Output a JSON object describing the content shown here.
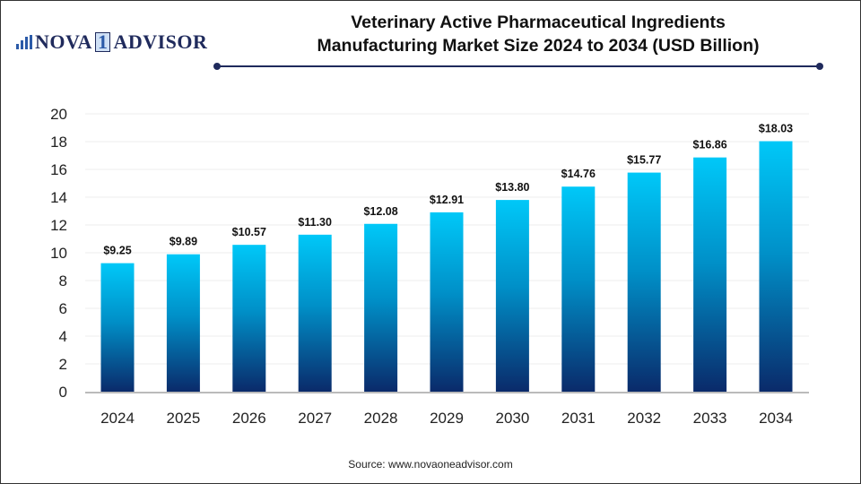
{
  "logo": {
    "text_left": "NOVA",
    "text_num": "1",
    "text_right": "ADVISOR"
  },
  "title_line1": "Veterinary Active Pharmaceutical Ingredients",
  "title_line2": "Manufacturing Market Size 2024 to 2034 (USD Billion)",
  "source": "Source: www.novaoneadvisor.com",
  "colors": {
    "bar_top": "#00c8f8",
    "bar_bottom": "#0a2a6a",
    "accent": "#1f2a5c"
  },
  "chart_data": {
    "type": "bar",
    "categories": [
      "2024",
      "2025",
      "2026",
      "2027",
      "2028",
      "2029",
      "2030",
      "2031",
      "2032",
      "2033",
      "2034"
    ],
    "values": [
      9.25,
      9.89,
      10.57,
      11.3,
      12.08,
      12.91,
      13.8,
      14.76,
      15.77,
      16.86,
      18.03
    ],
    "data_labels": [
      "$9.25",
      "$9.89",
      "$10.57",
      "$11.30",
      "$12.08",
      "$12.91",
      "$13.80",
      "$14.76",
      "$15.77",
      "$16.86",
      "$18.03"
    ],
    "ylim": [
      0,
      20
    ],
    "yticks": [
      0,
      2,
      4,
      6,
      8,
      10,
      12,
      14,
      16,
      18,
      20
    ],
    "grid": true,
    "xlabel": "",
    "ylabel": ""
  }
}
